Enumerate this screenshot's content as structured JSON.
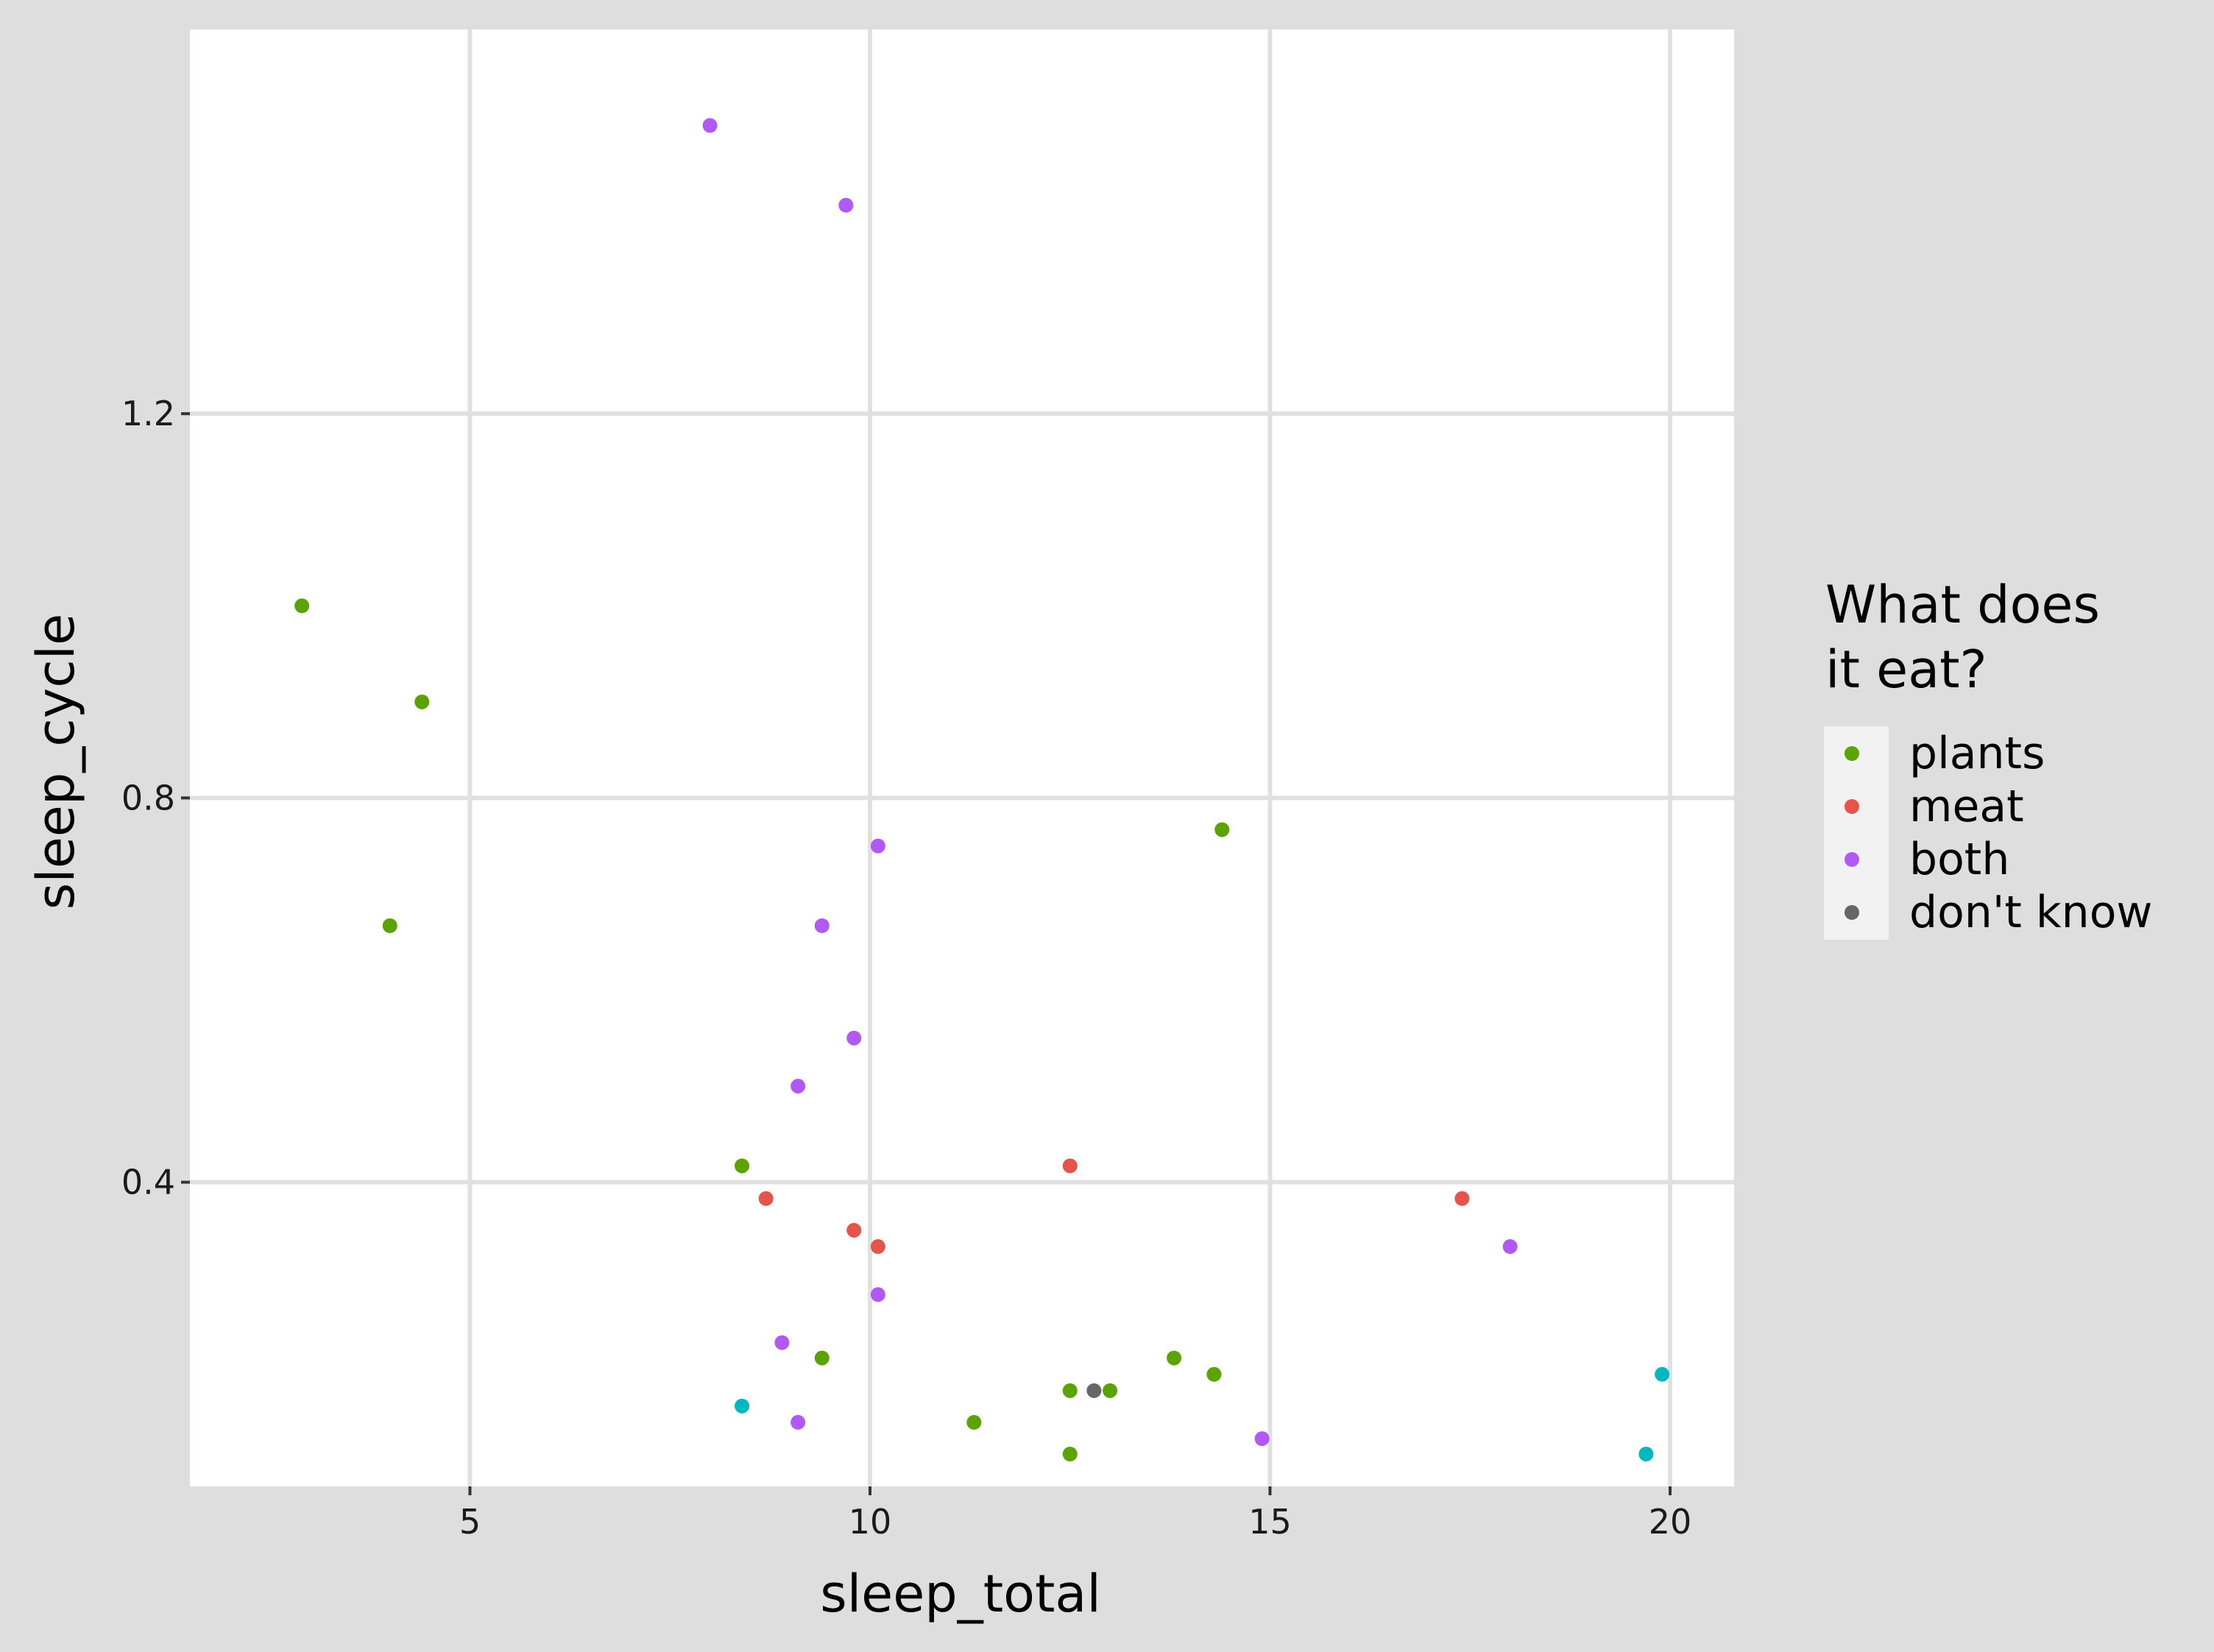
{
  "chart_data": {
    "type": "scatter",
    "title": "",
    "xlabel": "sleep_total",
    "ylabel": "sleep_cycle",
    "xlim": [
      1.5,
      20.8
    ],
    "ylim": [
      0.0833,
      1.6
    ],
    "x_ticks": [
      5,
      10,
      15,
      20
    ],
    "y_ticks": [
      0.4,
      0.8,
      1.2
    ],
    "x_tick_labels": [
      "5",
      "10",
      "15",
      "20"
    ],
    "y_tick_labels": [
      "0.4",
      "0.8",
      "1.2"
    ],
    "grid": true,
    "legend": {
      "title_lines": [
        "What does",
        "it eat?"
      ],
      "position": "right",
      "entries": [
        {
          "label": "plants",
          "color": "#5ba300"
        },
        {
          "label": "meat",
          "color": "#e5534b"
        },
        {
          "label": "both",
          "color": "#b259f5"
        },
        {
          "label": "don't know",
          "color": "#666666"
        }
      ]
    },
    "unlisted_series_color": "#00b7c2",
    "series": [
      {
        "name": "plants",
        "color": "#5ba300",
        "points": [
          {
            "x": 2.9,
            "y": 1.0
          },
          {
            "x": 4.4,
            "y": 0.9
          },
          {
            "x": 4.0,
            "y": 0.667
          },
          {
            "x": 14.4,
            "y": 0.767
          },
          {
            "x": 8.4,
            "y": 0.417
          },
          {
            "x": 9.4,
            "y": 0.217
          },
          {
            "x": 11.3,
            "y": 0.15
          },
          {
            "x": 12.5,
            "y": 0.183
          },
          {
            "x": 13.0,
            "y": 0.183
          },
          {
            "x": 12.5,
            "y": 0.117
          },
          {
            "x": 13.8,
            "y": 0.217
          },
          {
            "x": 14.3,
            "y": 0.2
          }
        ]
      },
      {
        "name": "meat",
        "color": "#e5534b",
        "points": [
          {
            "x": 8.7,
            "y": 0.383
          },
          {
            "x": 9.8,
            "y": 0.35
          },
          {
            "x": 10.1,
            "y": 0.333
          },
          {
            "x": 12.5,
            "y": 0.417
          },
          {
            "x": 17.4,
            "y": 0.383
          }
        ]
      },
      {
        "name": "both",
        "color": "#b259f5",
        "points": [
          {
            "x": 8.0,
            "y": 1.5
          },
          {
            "x": 9.7,
            "y": 1.417
          },
          {
            "x": 10.1,
            "y": 0.75
          },
          {
            "x": 9.4,
            "y": 0.667
          },
          {
            "x": 9.8,
            "y": 0.55
          },
          {
            "x": 9.1,
            "y": 0.5
          },
          {
            "x": 10.1,
            "y": 0.283
          },
          {
            "x": 8.9,
            "y": 0.233
          },
          {
            "x": 9.1,
            "y": 0.15
          },
          {
            "x": 14.9,
            "y": 0.133
          },
          {
            "x": 18.0,
            "y": 0.333
          }
        ]
      },
      {
        "name": "don't know",
        "color": "#666666",
        "points": [
          {
            "x": 12.8,
            "y": 0.183
          }
        ]
      },
      {
        "name": "",
        "color": "#00b7c2",
        "points": [
          {
            "x": 8.4,
            "y": 0.167
          },
          {
            "x": 19.9,
            "y": 0.2
          },
          {
            "x": 19.7,
            "y": 0.117
          }
        ]
      }
    ]
  }
}
